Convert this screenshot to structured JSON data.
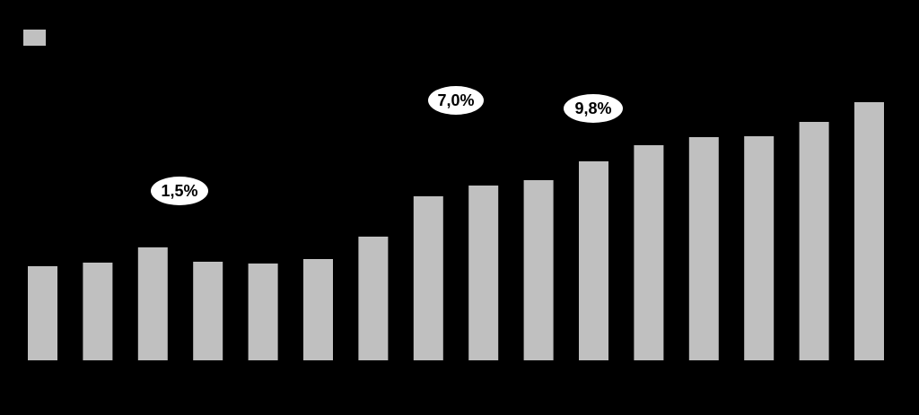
{
  "chart_data": {
    "type": "bar",
    "categories": [
      "",
      "",
      "",
      "",
      "",
      "",
      "",
      "",
      "",
      "",
      "",
      "",
      "",
      "",
      "",
      ""
    ],
    "values": [
      105,
      109,
      126,
      110,
      108,
      113,
      138,
      183,
      195,
      201,
      222,
      240,
      249,
      250,
      266,
      288
    ],
    "ylim": [
      0,
      300
    ],
    "grid": false,
    "legend": "top-left",
    "bar_color": "#c0c0c0",
    "background_color": "#000000",
    "callouts": [
      {
        "text": "1,5%"
      },
      {
        "text": "7,0%"
      },
      {
        "text": "9,8%"
      }
    ]
  }
}
